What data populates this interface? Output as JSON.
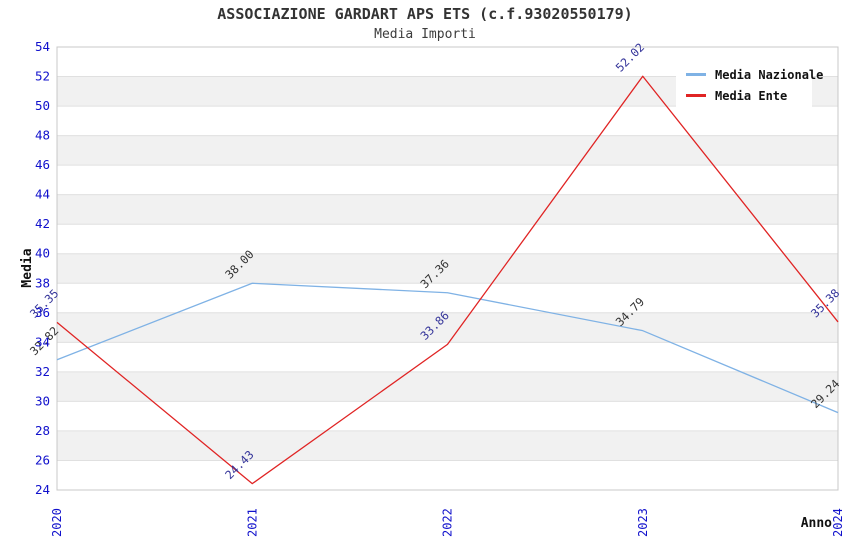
{
  "header": {
    "title": "ASSOCIAZIONE GARDART APS ETS (c.f.93020550179)",
    "subtitle": "Media Importi"
  },
  "chart_data": {
    "type": "line",
    "x": [
      "2020",
      "2021",
      "2022",
      "2023",
      "2024"
    ],
    "xlabel": "Anno",
    "ylabel": "Media",
    "ylim": [
      24,
      54
    ],
    "ytick_step": 2,
    "grid": true,
    "banded_background": true,
    "legend_position": "top-right",
    "series": [
      {
        "name": "Media Nazionale",
        "color": "#7FB2E5",
        "label_color": "#333333",
        "values": [
          32.82,
          38.0,
          37.36,
          34.79,
          29.24
        ]
      },
      {
        "name": "Media Ente",
        "color": "#E02424",
        "label_color": "#333399",
        "values": [
          35.35,
          24.43,
          33.86,
          52.02,
          35.38
        ]
      }
    ]
  },
  "colors": {
    "tick_label": "#1111CC",
    "band": "#F1F1F1",
    "gridline": "#E0E0E0",
    "plot_border": "#C8C8C8",
    "axis_title": "#111111",
    "background": "#FFFFFF"
  }
}
